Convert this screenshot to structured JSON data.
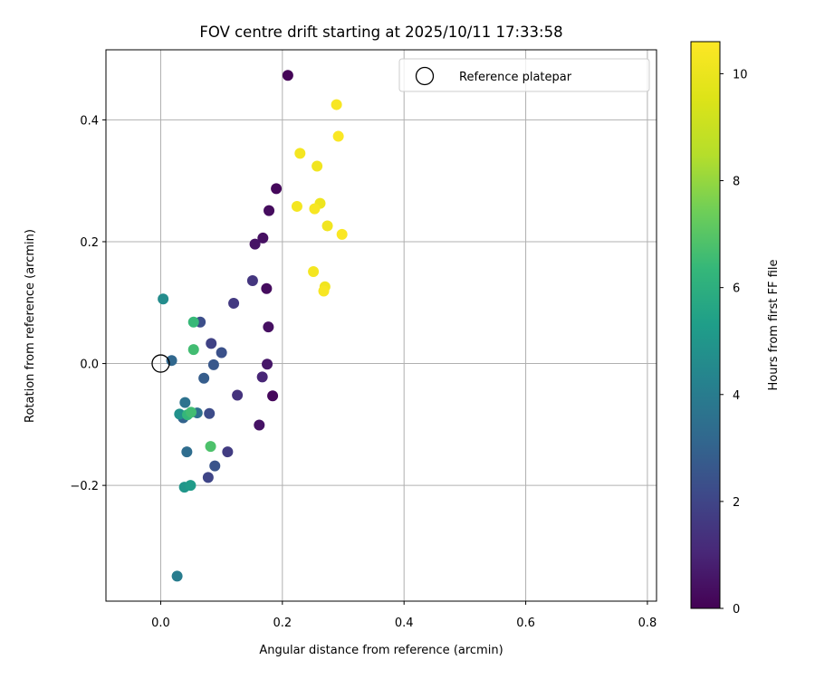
{
  "chart_data": {
    "type": "scatter",
    "title": "FOV centre drift starting at 2025/10/11 17:33:58",
    "xlabel": "Angular distance from reference (arcmin)",
    "ylabel": "Rotation from reference (arcmin)",
    "xlim": [
      -0.09,
      0.815
    ],
    "ylim": [
      -0.39,
      0.515
    ],
    "xticks": [
      0.0,
      0.2,
      0.4,
      0.6,
      0.8
    ],
    "yticks": [
      -0.2,
      0.0,
      0.2,
      0.4
    ],
    "xtick_labels": [
      "0.0",
      "0.2",
      "0.4",
      "0.6",
      "0.8"
    ],
    "ytick_labels": [
      "−0.2",
      "0.0",
      "0.2",
      "0.4"
    ],
    "grid": true,
    "legend": {
      "position": "upper right",
      "entries": [
        "Reference platepar"
      ]
    },
    "reference_point": {
      "x": 0.0,
      "y": 0.0
    },
    "colorbar": {
      "label": "Hours from first FF file",
      "colormap": "viridis",
      "range": [
        0,
        10.6
      ],
      "ticks": [
        0,
        2,
        4,
        6,
        8,
        10
      ],
      "tick_labels": [
        "0",
        "2",
        "4",
        "6",
        "8",
        "10"
      ]
    },
    "points": [
      {
        "x": 0.209,
        "y": 0.473,
        "hours": 0.1
      },
      {
        "x": 0.19,
        "y": 0.287,
        "hours": 0.2
      },
      {
        "x": 0.178,
        "y": 0.251,
        "hours": 0.3
      },
      {
        "x": 0.168,
        "y": 0.206,
        "hours": 0.4
      },
      {
        "x": 0.155,
        "y": 0.196,
        "hours": 0.5
      },
      {
        "x": 0.174,
        "y": 0.123,
        "hours": 0.3
      },
      {
        "x": 0.177,
        "y": 0.06,
        "hours": 0.4
      },
      {
        "x": 0.175,
        "y": -0.001,
        "hours": 0.6
      },
      {
        "x": 0.184,
        "y": -0.053,
        "hours": 0.2
      },
      {
        "x": 0.167,
        "y": -0.022,
        "hours": 1.0
      },
      {
        "x": 0.162,
        "y": -0.101,
        "hours": 0.5
      },
      {
        "x": 0.151,
        "y": 0.136,
        "hours": 1.5
      },
      {
        "x": 0.12,
        "y": 0.099,
        "hours": 1.6
      },
      {
        "x": 0.126,
        "y": -0.052,
        "hours": 1.4
      },
      {
        "x": 0.11,
        "y": -0.145,
        "hours": 1.7
      },
      {
        "x": 0.1,
        "y": 0.018,
        "hours": 2.4
      },
      {
        "x": 0.083,
        "y": 0.033,
        "hours": 1.9
      },
      {
        "x": 0.087,
        "y": -0.002,
        "hours": 2.6
      },
      {
        "x": 0.071,
        "y": -0.024,
        "hours": 2.8
      },
      {
        "x": 0.08,
        "y": -0.082,
        "hours": 2.2
      },
      {
        "x": 0.089,
        "y": -0.168,
        "hours": 2.5
      },
      {
        "x": 0.078,
        "y": -0.187,
        "hours": 2.0
      },
      {
        "x": 0.065,
        "y": 0.068,
        "hours": 2.3
      },
      {
        "x": 0.06,
        "y": -0.081,
        "hours": 3.5
      },
      {
        "x": 0.04,
        "y": -0.064,
        "hours": 3.6
      },
      {
        "x": 0.037,
        "y": -0.089,
        "hours": 3.0
      },
      {
        "x": 0.043,
        "y": -0.145,
        "hours": 3.4
      },
      {
        "x": 0.018,
        "y": 0.005,
        "hours": 3.2
      },
      {
        "x": 0.004,
        "y": 0.106,
        "hours": 4.6
      },
      {
        "x": 0.027,
        "y": -0.349,
        "hours": 4.0
      },
      {
        "x": 0.031,
        "y": -0.083,
        "hours": 4.8
      },
      {
        "x": 0.039,
        "y": -0.203,
        "hours": 5.0
      },
      {
        "x": 0.049,
        "y": -0.2,
        "hours": 5.2
      },
      {
        "x": 0.044,
        "y": -0.084,
        "hours": 6.3
      },
      {
        "x": 0.05,
        "y": -0.08,
        "hours": 6.6
      },
      {
        "x": 0.054,
        "y": 0.068,
        "hours": 6.4
      },
      {
        "x": 0.054,
        "y": 0.023,
        "hours": 6.6
      },
      {
        "x": 0.082,
        "y": -0.136,
        "hours": 6.8
      },
      {
        "x": 0.229,
        "y": 0.345,
        "hours": 10.3
      },
      {
        "x": 0.289,
        "y": 0.425,
        "hours": 10.4
      },
      {
        "x": 0.292,
        "y": 0.373,
        "hours": 10.5
      },
      {
        "x": 0.257,
        "y": 0.324,
        "hours": 10.2
      },
      {
        "x": 0.224,
        "y": 0.258,
        "hours": 10.3
      },
      {
        "x": 0.262,
        "y": 0.263,
        "hours": 10.1
      },
      {
        "x": 0.253,
        "y": 0.254,
        "hours": 10.4
      },
      {
        "x": 0.274,
        "y": 0.226,
        "hours": 10.2
      },
      {
        "x": 0.298,
        "y": 0.212,
        "hours": 10.5
      },
      {
        "x": 0.251,
        "y": 0.151,
        "hours": 10.3
      },
      {
        "x": 0.27,
        "y": 0.126,
        "hours": 10.2
      },
      {
        "x": 0.268,
        "y": 0.119,
        "hours": 10.4
      }
    ]
  }
}
